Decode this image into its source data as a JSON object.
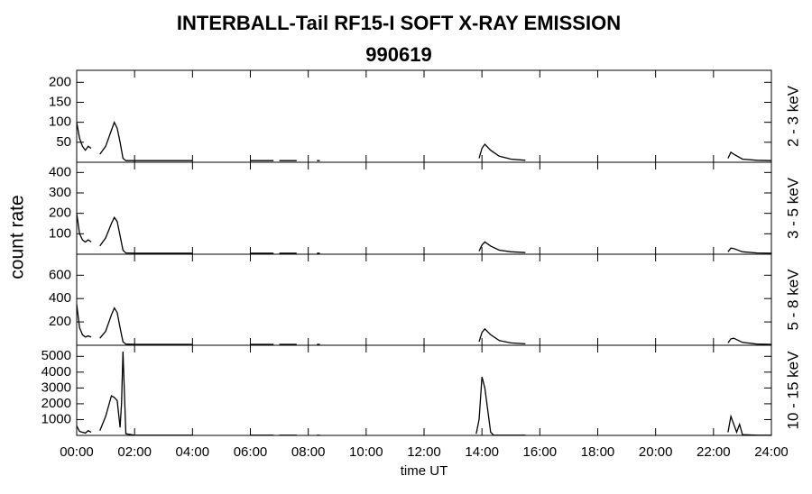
{
  "chart_data": [
    {
      "type": "line",
      "title": "INTERBALL-Tail RF15-I SOFT X-RAY EMISSION",
      "subtitle": "990619",
      "ylabel": "count rate",
      "x": [
        0,
        0.1,
        0.2,
        0.3,
        0.4,
        0.5,
        0.55,
        0.8,
        1.0,
        1.2,
        1.3,
        1.4,
        1.5,
        1.6,
        1.7,
        2.0,
        3.0,
        4.0,
        4.1,
        6.0,
        6.8,
        6.9,
        7.0,
        7.6,
        7.7,
        8.3,
        8.4,
        8.5,
        13.9,
        14.0,
        14.1,
        14.3,
        14.6,
        15.0,
        15.5,
        15.6,
        22.5,
        22.6,
        22.7,
        23.0,
        23.5,
        24.0
      ],
      "series": [
        {
          "name": "2 - 3 keV",
          "color": "#000000",
          "values": [
            100,
            60,
            40,
            30,
            40,
            35,
            null,
            20,
            40,
            80,
            100,
            85,
            50,
            10,
            4,
            4,
            4,
            4,
            null,
            4,
            4,
            null,
            4,
            4,
            null,
            4,
            4,
            null,
            10,
            35,
            45,
            30,
            15,
            8,
            5,
            null,
            10,
            25,
            20,
            8,
            5,
            4
          ]
        }
      ],
      "ylim": [
        0,
        230
      ],
      "yticks": [
        50,
        100,
        150,
        200
      ]
    },
    {
      "type": "line",
      "x": [
        0,
        0.1,
        0.2,
        0.3,
        0.4,
        0.5,
        0.55,
        0.8,
        1.0,
        1.2,
        1.3,
        1.4,
        1.5,
        1.6,
        1.7,
        2.0,
        3.0,
        4.0,
        4.1,
        6.0,
        6.8,
        6.9,
        7.0,
        7.6,
        7.7,
        8.3,
        8.4,
        8.5,
        13.9,
        14.0,
        14.1,
        14.3,
        14.6,
        15.0,
        15.5,
        15.6,
        22.5,
        22.6,
        22.7,
        23.0,
        23.5,
        24.0
      ],
      "series": [
        {
          "name": "3 - 5 keV",
          "color": "#000000",
          "values": [
            200,
            100,
            70,
            60,
            70,
            60,
            null,
            40,
            80,
            150,
            180,
            160,
            90,
            20,
            6,
            5,
            5,
            5,
            null,
            5,
            5,
            null,
            5,
            5,
            null,
            5,
            5,
            null,
            15,
            45,
            60,
            40,
            20,
            12,
            8,
            null,
            12,
            30,
            28,
            12,
            6,
            5
          ]
        }
      ],
      "ylim": [
        0,
        450
      ],
      "yticks": [
        100,
        200,
        300,
        400
      ]
    },
    {
      "type": "line",
      "x": [
        0,
        0.1,
        0.2,
        0.3,
        0.4,
        0.5,
        0.55,
        0.8,
        1.0,
        1.2,
        1.3,
        1.4,
        1.5,
        1.6,
        1.7,
        2.0,
        3.0,
        4.0,
        4.1,
        6.0,
        6.8,
        6.9,
        7.0,
        7.6,
        7.7,
        8.3,
        8.4,
        8.5,
        13.9,
        14.0,
        14.1,
        14.3,
        14.6,
        15.0,
        15.5,
        15.6,
        22.5,
        22.6,
        22.7,
        23.0,
        23.5,
        24.0
      ],
      "series": [
        {
          "name": "5 - 8 keV",
          "color": "#000000",
          "values": [
            350,
            150,
            90,
            70,
            80,
            70,
            null,
            60,
            120,
            260,
            320,
            280,
            150,
            30,
            10,
            8,
            8,
            8,
            null,
            8,
            8,
            null,
            8,
            8,
            null,
            8,
            8,
            null,
            30,
            110,
            140,
            90,
            40,
            20,
            12,
            null,
            20,
            55,
            60,
            25,
            10,
            8
          ]
        }
      ],
      "ylim": [
        0,
        780
      ],
      "yticks": [
        200,
        400,
        600
      ]
    },
    {
      "type": "line",
      "xlabel": "time UT",
      "x": [
        0,
        0.1,
        0.2,
        0.3,
        0.4,
        0.5,
        0.55,
        0.8,
        1.0,
        1.2,
        1.3,
        1.4,
        1.5,
        1.55,
        1.6,
        1.7,
        2.0,
        3.0,
        4.0,
        4.1,
        6.0,
        6.8,
        6.9,
        7.0,
        7.6,
        7.7,
        8.3,
        8.4,
        8.5,
        13.8,
        13.9,
        14.0,
        14.1,
        14.3,
        14.4,
        15.0,
        15.5,
        15.6,
        22.5,
        22.6,
        22.7,
        22.8,
        22.9,
        23.0,
        23.5,
        24.0
      ],
      "series": [
        {
          "name": "10 - 15 keV",
          "color": "#000000",
          "values": [
            600,
            250,
            200,
            150,
            300,
            200,
            null,
            300,
            1200,
            2500,
            2400,
            2200,
            500,
            2000,
            5300,
            100,
            10,
            10,
            10,
            null,
            10,
            10,
            null,
            10,
            10,
            null,
            10,
            10,
            null,
            100,
            1000,
            3700,
            3000,
            200,
            20,
            10,
            10,
            null,
            200,
            1200,
            700,
            200,
            700,
            50,
            10,
            10
          ]
        }
      ],
      "ylim": [
        0,
        5700
      ],
      "yticks": [
        1000,
        2000,
        3000,
        4000,
        5000
      ],
      "xlim": [
        0,
        24
      ],
      "xticks": [
        {
          "value": 0,
          "label": "00:00"
        },
        {
          "value": 2,
          "label": "02:00"
        },
        {
          "value": 4,
          "label": "04:00"
        },
        {
          "value": 6,
          "label": "06:00"
        },
        {
          "value": 8,
          "label": "08:00"
        },
        {
          "value": 10,
          "label": "10:00"
        },
        {
          "value": 12,
          "label": "12:00"
        },
        {
          "value": 14,
          "label": "14:00"
        },
        {
          "value": 16,
          "label": "16:00"
        },
        {
          "value": 18,
          "label": "18:00"
        },
        {
          "value": 20,
          "label": "20:00"
        },
        {
          "value": 22,
          "label": "22:00"
        },
        {
          "value": 24,
          "label": "24:00"
        }
      ]
    }
  ]
}
